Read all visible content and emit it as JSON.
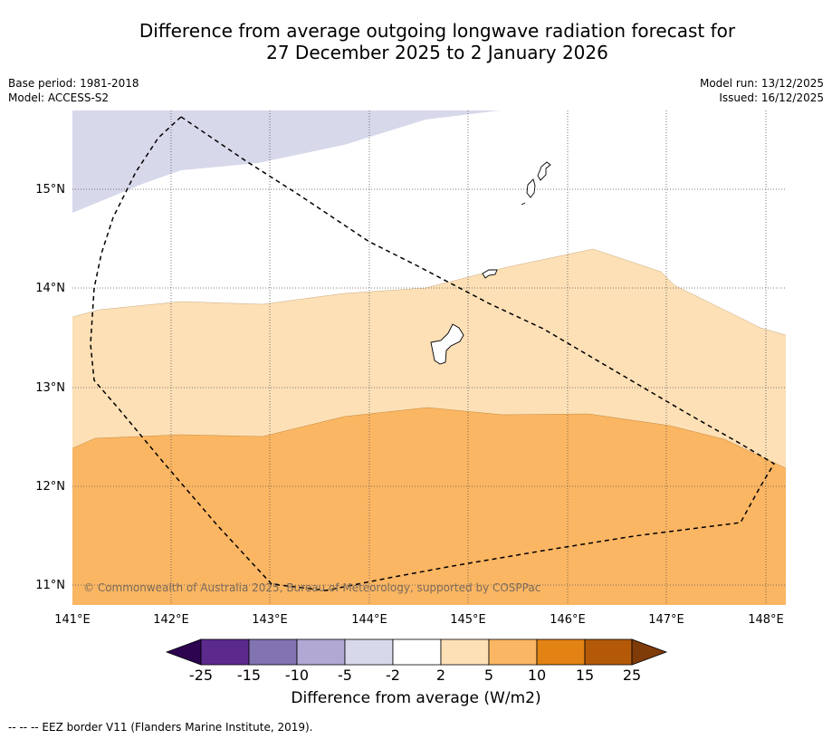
{
  "title": {
    "line1": "Difference from average outgoing longwave radiation forecast for",
    "line2": "27 December 2025 to 2 January 2026"
  },
  "meta": {
    "base_period": "Base period: 1981-2018",
    "model": "Model: ACCESS-S2",
    "model_run": "Model run: 13/12/2025",
    "issued": "Issued: 16/12/2025"
  },
  "map": {
    "lon_range": [
      141.0,
      148.2
    ],
    "lat_range": [
      10.8,
      15.8
    ],
    "lon_ticks": [
      "141°E",
      "142°E",
      "143°E",
      "144°E",
      "145°E",
      "146°E",
      "147°E",
      "148°E"
    ],
    "lat_ticks": [
      "15°N",
      "14°N",
      "13°N",
      "12°N",
      "11°N"
    ],
    "copyright": "© Commonwealth of Australia 2025, Bureau of Meteorology, supported by COSPPac",
    "regions": [
      {
        "name": "difference-region-minus5-to-minus2",
        "range": "-5 to -2",
        "color": "#d7d8ea"
      },
      {
        "name": "difference-region-2-to-5",
        "range": "2 to 5",
        "color": "#fde0b6"
      },
      {
        "name": "difference-region-5-to-10",
        "range": "5 to 10",
        "color": "#fbb663"
      }
    ]
  },
  "colorbar": {
    "labels": [
      "-25",
      "-15",
      "-10",
      "-5",
      "-2",
      "2",
      "5",
      "10",
      "15",
      "25"
    ],
    "colors": [
      "#5b2a8c",
      "#8273b2",
      "#b1a9d3",
      "#d7d8ea",
      "#ffffff",
      "#fde0b6",
      "#fbb663",
      "#e38314",
      "#b35908"
    ],
    "under_color": "#2d0450",
    "over_color": "#7f3b08",
    "title": "Difference from average (W/m2)"
  },
  "footer": "-- -- -- EEZ border V11 (Flanders Marine Institute, 2019)."
}
